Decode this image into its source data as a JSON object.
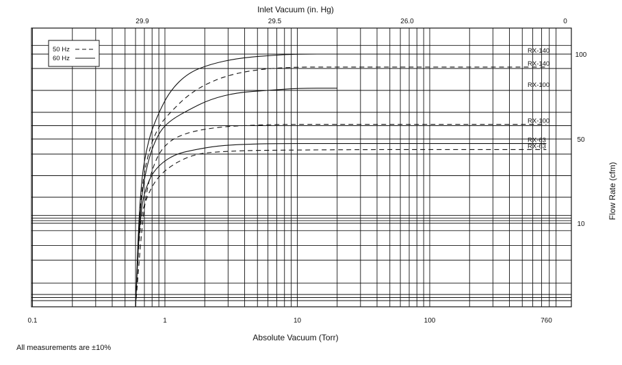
{
  "chart_data": {
    "type": "line",
    "x_scale": "log",
    "y_scale": "log",
    "xlabel_bottom": "Absolute Vacuum (Torr)",
    "xlabel_top": "Inlet Vacuum (in. Hg)",
    "ylabel": "Flow Rate (cfm)",
    "xlim": [
      0.1,
      1000
    ],
    "ylim": [
      0,
      130
    ],
    "x_ticks_bottom": [
      {
        "value": 0.1,
        "label": "0.1"
      },
      {
        "value": 1,
        "label": "1"
      },
      {
        "value": 10,
        "label": "10"
      },
      {
        "value": 100,
        "label": "100"
      },
      {
        "value": 760,
        "label": "760"
      }
    ],
    "x_ticks_top": [
      {
        "torr": 1,
        "label": "29.9"
      },
      {
        "torr": 10,
        "label": "29.5"
      },
      {
        "torr": 100,
        "label": "26.0"
      },
      {
        "torr": 760,
        "label": "0"
      }
    ],
    "y_ticks": [
      {
        "value": 10,
        "label": "10"
      },
      {
        "value": 50,
        "label": "50"
      },
      {
        "value": 100,
        "label": "100"
      }
    ],
    "grid": true,
    "legend": {
      "position": "top-left",
      "entries": [
        {
          "label": "50 Hz",
          "style": "dashed"
        },
        {
          "label": "60 Hz",
          "style": "solid"
        }
      ]
    },
    "series": [
      {
        "name": "RX-140",
        "style": "solid",
        "x": [
          0.6,
          0.65,
          0.75,
          0.9,
          1.1,
          1.5,
          2.2,
          3.5,
          6,
          10,
          20,
          50,
          300,
          600
        ],
        "y": [
          0,
          25,
          50,
          70,
          80,
          88,
          93,
          97,
          99,
          100,
          100,
          100,
          100,
          100
        ]
      },
      {
        "name": "RX-140",
        "style": "dashed",
        "x": [
          0.6,
          0.65,
          0.75,
          0.9,
          1.1,
          1.5,
          2.2,
          3.5,
          6,
          10,
          20,
          50,
          300,
          760
        ],
        "y": [
          0,
          20,
          42,
          60,
          70,
          78,
          84,
          88,
          90,
          91,
          91,
          91,
          91,
          91
        ]
      },
      {
        "name": "RX-100",
        "style": "solid",
        "x": [
          0.6,
          0.65,
          0.75,
          0.9,
          1.1,
          1.5,
          2.2,
          3.5,
          6,
          10,
          20
        ],
        "y": [
          0,
          18,
          38,
          55,
          64,
          71,
          76,
          79,
          80,
          81,
          81
        ]
      },
      {
        "name": "RX-100",
        "style": "dashed",
        "x": [
          0.6,
          0.7,
          0.85,
          1.05,
          1.4,
          2,
          3,
          5,
          8,
          15,
          50,
          300,
          760
        ],
        "y": [
          0,
          20,
          38,
          48,
          54,
          57.5,
          59.5,
          60.5,
          61,
          61,
          61,
          61,
          61
        ]
      },
      {
        "name": "RX-63",
        "style": "solid",
        "x": [
          0.6,
          0.65,
          0.75,
          0.9,
          1.2,
          1.7,
          2.5,
          4,
          7,
          15,
          50,
          300,
          760
        ],
        "y": [
          0,
          15,
          28,
          35,
          40,
          43,
          45.5,
          46.5,
          47,
          47,
          47,
          47,
          47
        ]
      },
      {
        "name": "RX-63",
        "style": "dashed",
        "x": [
          0.6,
          0.65,
          0.75,
          0.9,
          1.2,
          1.7,
          2.5,
          4,
          7,
          15,
          50,
          300,
          760
        ],
        "y": [
          0,
          12,
          22,
          30,
          36,
          40,
          41.5,
          42.3,
          42.6,
          42.8,
          43,
          43,
          43
        ]
      }
    ]
  },
  "footnote": "All measurements are  ±10%"
}
